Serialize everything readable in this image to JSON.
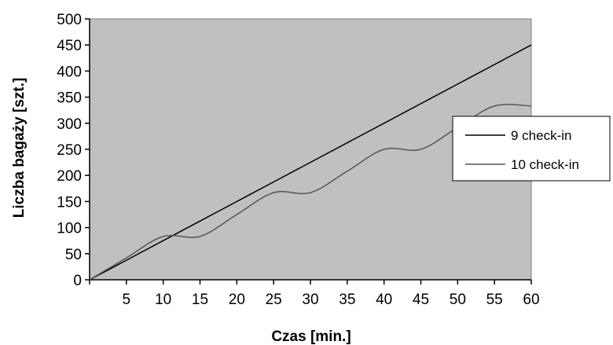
{
  "chart_data": {
    "type": "line",
    "xlabel": "Czas [min.]",
    "ylabel": "Liczba bagaży [szt.]",
    "xlim": [
      0,
      60
    ],
    "ylim": [
      0,
      500
    ],
    "x_ticks": [
      5,
      10,
      15,
      20,
      25,
      30,
      35,
      40,
      45,
      50,
      55,
      60
    ],
    "y_ticks": [
      0,
      50,
      100,
      150,
      200,
      250,
      300,
      350,
      400,
      450,
      500
    ],
    "x": [
      0,
      5,
      10,
      15,
      20,
      25,
      30,
      35,
      40,
      45,
      50,
      55,
      60
    ],
    "series": [
      {
        "name": "9 check-in",
        "color": "#000000",
        "values": [
          0,
          37.5,
          75,
          112.5,
          150,
          187.5,
          225,
          262.5,
          300,
          337.5,
          375,
          412.5,
          450
        ]
      },
      {
        "name": "10 check-in",
        "color": "#555555",
        "values": [
          0,
          42,
          83,
          83,
          125,
          167,
          167,
          208,
          250,
          250,
          292,
          333,
          333
        ]
      }
    ],
    "grid": false,
    "legend_position": "right",
    "plot_background": "#c0c0c0"
  }
}
